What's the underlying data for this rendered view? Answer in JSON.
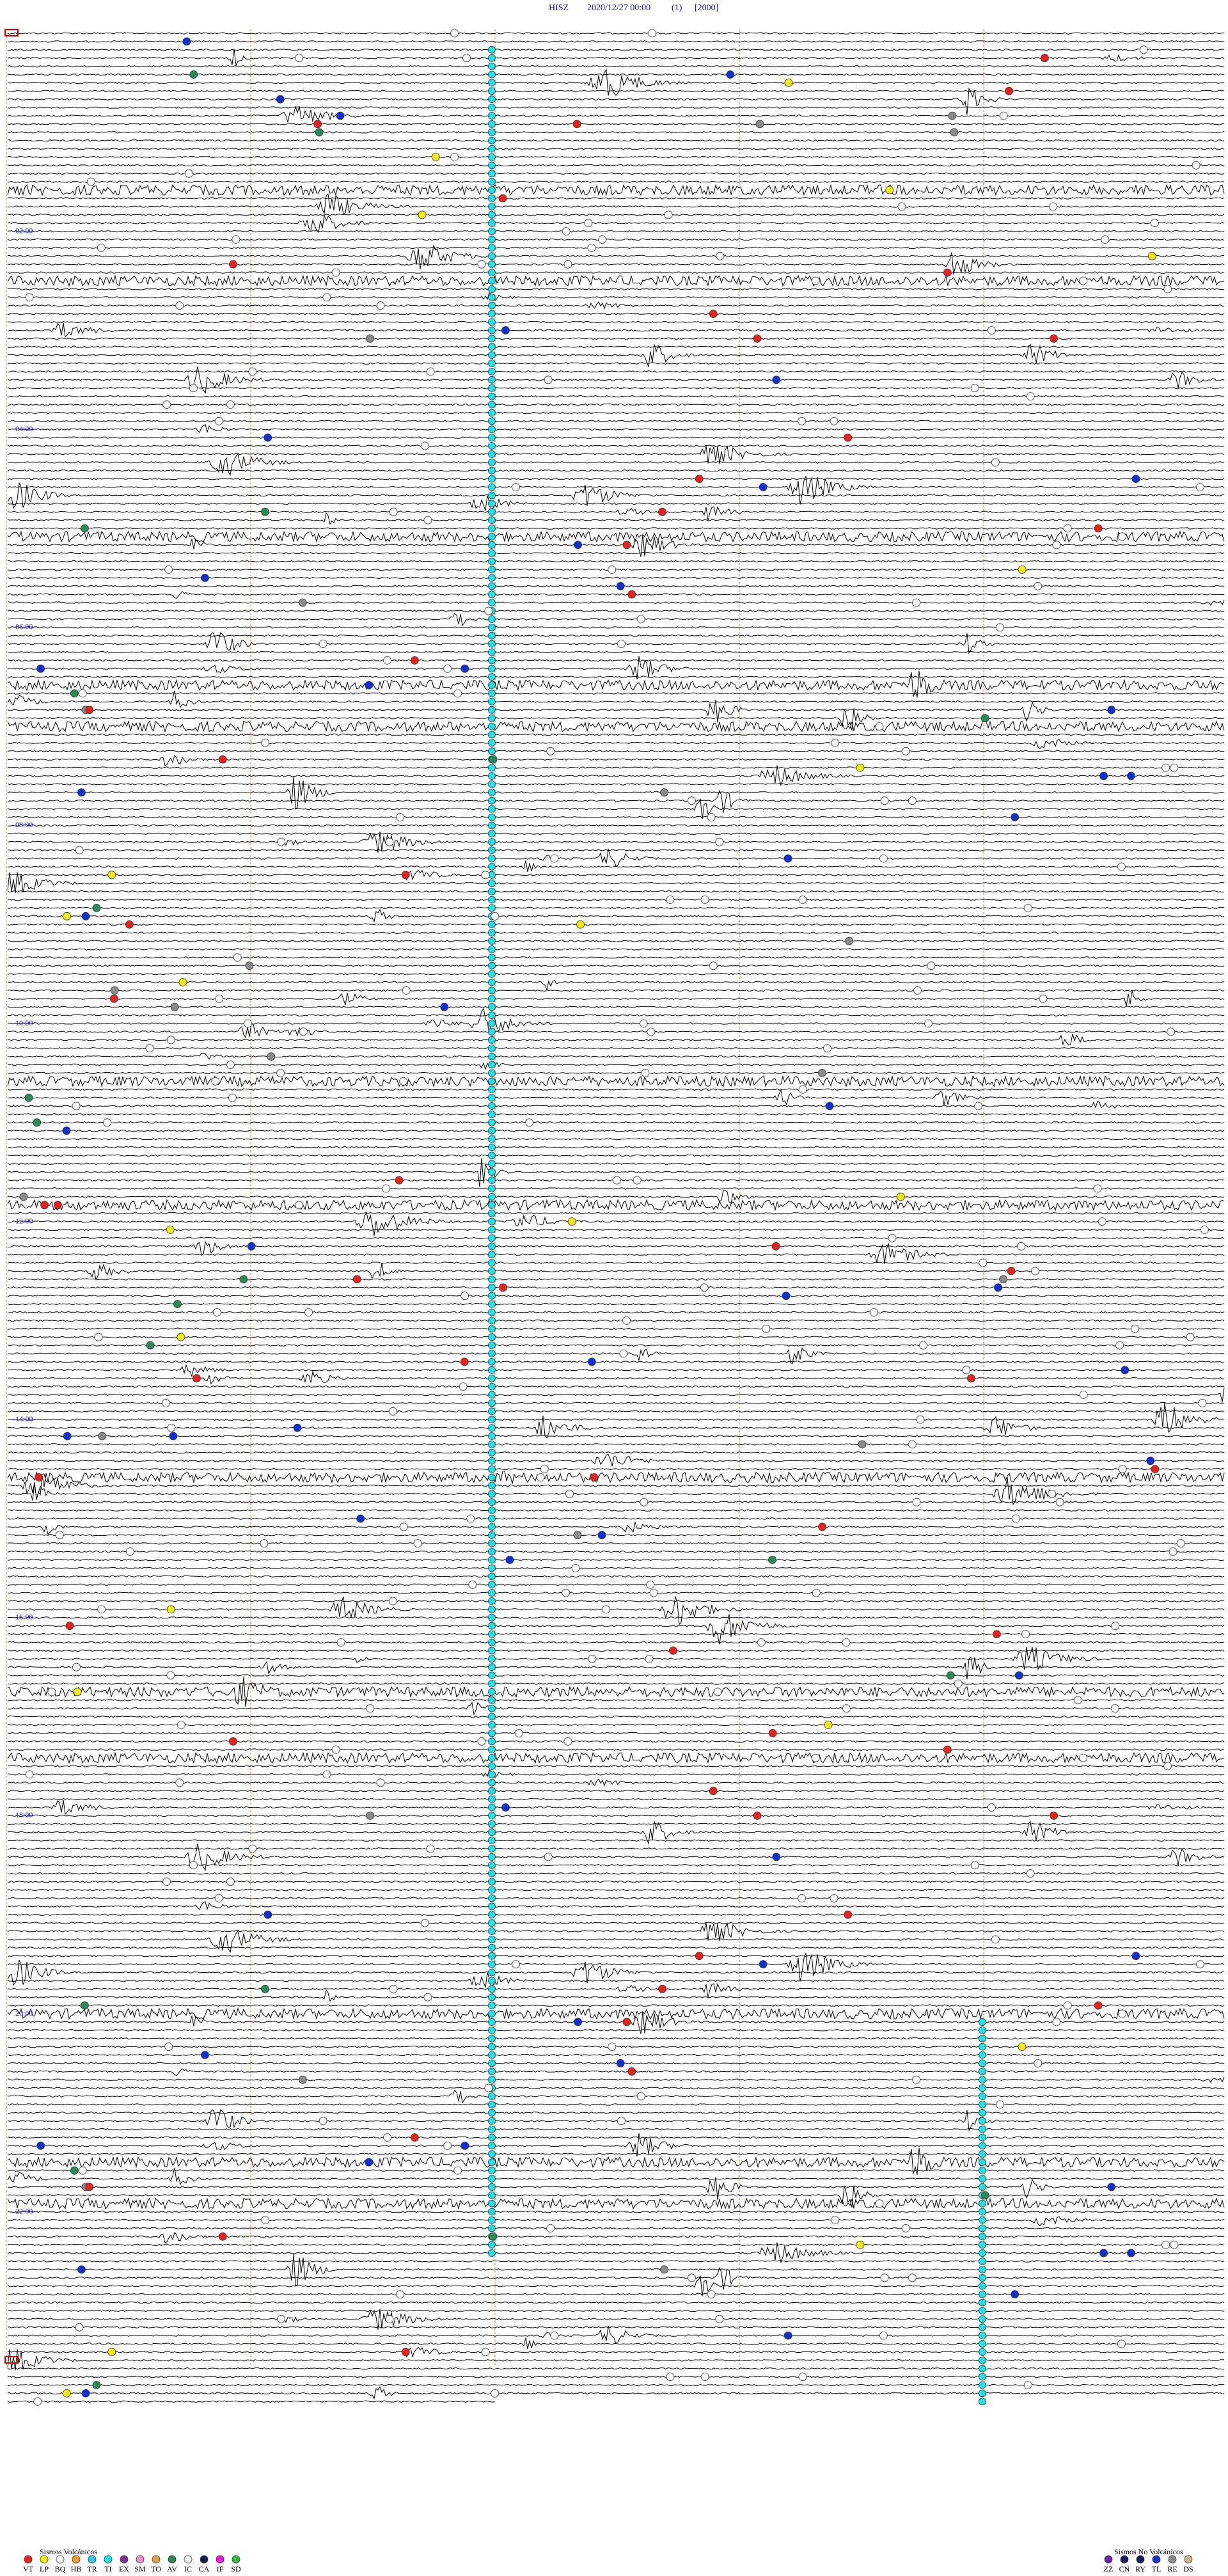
{
  "header": {
    "station": "HISZ",
    "datetime": "2020/12/27 00:00",
    "count": "(1)",
    "scale": "[2000]"
  },
  "hour_labels": [
    "02:00",
    "04:00",
    "06:00",
    "08:00",
    "10:00",
    "12:00",
    "14:00",
    "16:00",
    "18:00",
    "20:00",
    "22:00"
  ],
  "legend": {
    "volcanic": {
      "title": "Sismos Volcánicos",
      "items": [
        {
          "code": "VT",
          "color": "#e8231d"
        },
        {
          "code": "LP",
          "color": "#f2ee1a"
        },
        {
          "code": "BQ",
          "color": "#ffffff"
        },
        {
          "code": "HB",
          "color": "#f39a2b"
        },
        {
          "code": "TR",
          "color": "#39c2f0"
        },
        {
          "code": "TI",
          "color": "#22e2e6"
        },
        {
          "code": "EX",
          "color": "#7b2f9a"
        },
        {
          "code": "SM",
          "color": "#f08fd0"
        },
        {
          "code": "TO",
          "color": "#e2a24a"
        },
        {
          "code": "AV",
          "color": "#2a8a5a"
        },
        {
          "code": "IC",
          "color": "#f5f5f5"
        },
        {
          "code": "CA",
          "color": "#1a1a4a"
        },
        {
          "code": "IF",
          "color": "#e81ee0"
        },
        {
          "code": "SD",
          "color": "#33bb33"
        }
      ]
    },
    "non_volcanic": {
      "title": "Sismos No Volcánicos",
      "items": [
        {
          "code": "ZZ",
          "color": "#6a2a9a"
        },
        {
          "code": "CN",
          "color": "#1a1a5a"
        },
        {
          "code": "RY",
          "color": "#1a1a5a"
        },
        {
          "code": "TL",
          "color": "#1030d0"
        },
        {
          "code": "RE",
          "color": "#8a8a8a"
        },
        {
          "code": "DS",
          "color": "#c8b48a"
        }
      ]
    }
  }
}
